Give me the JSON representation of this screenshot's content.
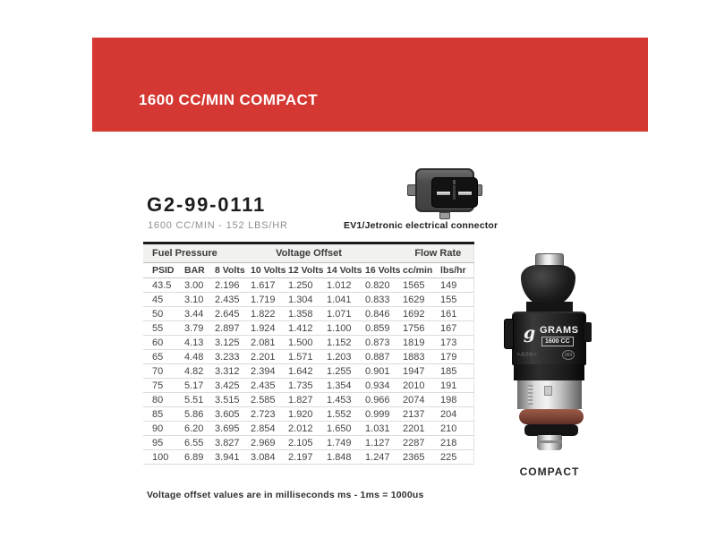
{
  "banner": {
    "title": "1600 CC/MIN COMPACT"
  },
  "part": {
    "number": "G2-99-0111",
    "subtitle": "1600 CC/MIN - 152 LBS/HR",
    "connector_label": "EV1/Jetronic electrical connector"
  },
  "table": {
    "groups": [
      {
        "label": "Fuel Pressure",
        "span": 2
      },
      {
        "label": "Voltage Offset",
        "span": 5
      },
      {
        "label": "Flow Rate",
        "span": 2
      }
    ],
    "columns": [
      "PSID",
      "BAR",
      "8 Volts",
      "10 Volts",
      "12 Volts",
      "14 Volts",
      "16 Volts",
      "cc/min",
      "lbs/hr"
    ],
    "rows": [
      [
        "43.5",
        "3.00",
        "2.196",
        "1.617",
        "1.250",
        "1.012",
        "0.820",
        "1565",
        "149"
      ],
      [
        "45",
        "3.10",
        "2.435",
        "1.719",
        "1.304",
        "1.041",
        "0.833",
        "1629",
        "155"
      ],
      [
        "50",
        "3.44",
        "2.645",
        "1.822",
        "1.358",
        "1.071",
        "0.846",
        "1692",
        "161"
      ],
      [
        "55",
        "3.79",
        "2.897",
        "1.924",
        "1.412",
        "1.100",
        "0.859",
        "1756",
        "167"
      ],
      [
        "60",
        "4.13",
        "3.125",
        "2.081",
        "1.500",
        "1.152",
        "0.873",
        "1819",
        "173"
      ],
      [
        "65",
        "4.48",
        "3.233",
        "2.201",
        "1.571",
        "1.203",
        "0.887",
        "1883",
        "179"
      ],
      [
        "70",
        "4.82",
        "3.312",
        "2.394",
        "1.642",
        "1.255",
        "0.901",
        "1947",
        "185"
      ],
      [
        "75",
        "5.17",
        "3.425",
        "2.435",
        "1.735",
        "1.354",
        "0.934",
        "2010",
        "191"
      ],
      [
        "80",
        "5.51",
        "3.515",
        "2.585",
        "1.827",
        "1.453",
        "0.966",
        "2074",
        "198"
      ],
      [
        "85",
        "5.86",
        "3.605",
        "2.723",
        "1.920",
        "1.552",
        "0.999",
        "2137",
        "204"
      ],
      [
        "90",
        "6.20",
        "3.695",
        "2.854",
        "2.012",
        "1.650",
        "1.031",
        "2201",
        "210"
      ],
      [
        "95",
        "6.55",
        "3.827",
        "2.969",
        "2.105",
        "1.749",
        "1.127",
        "2287",
        "218"
      ],
      [
        "100",
        "6.89",
        "3.941",
        "3.084",
        "2.197",
        "1.848",
        "1.247",
        "2365",
        "225"
      ]
    ]
  },
  "figure": {
    "logo_letter": "g",
    "brand": "GRAMS",
    "model": "1600 CC",
    "marking_left": ">A96<",
    "stamp": "069",
    "caption": "COMPACT"
  },
  "footnote": "Voltage offset values are in milliseconds ms - 1ms = 1000us",
  "colors": {
    "banner_red": "#d53832",
    "table_group_header_bg": "#f1f1ef",
    "oring_brown": "#7c4335"
  }
}
